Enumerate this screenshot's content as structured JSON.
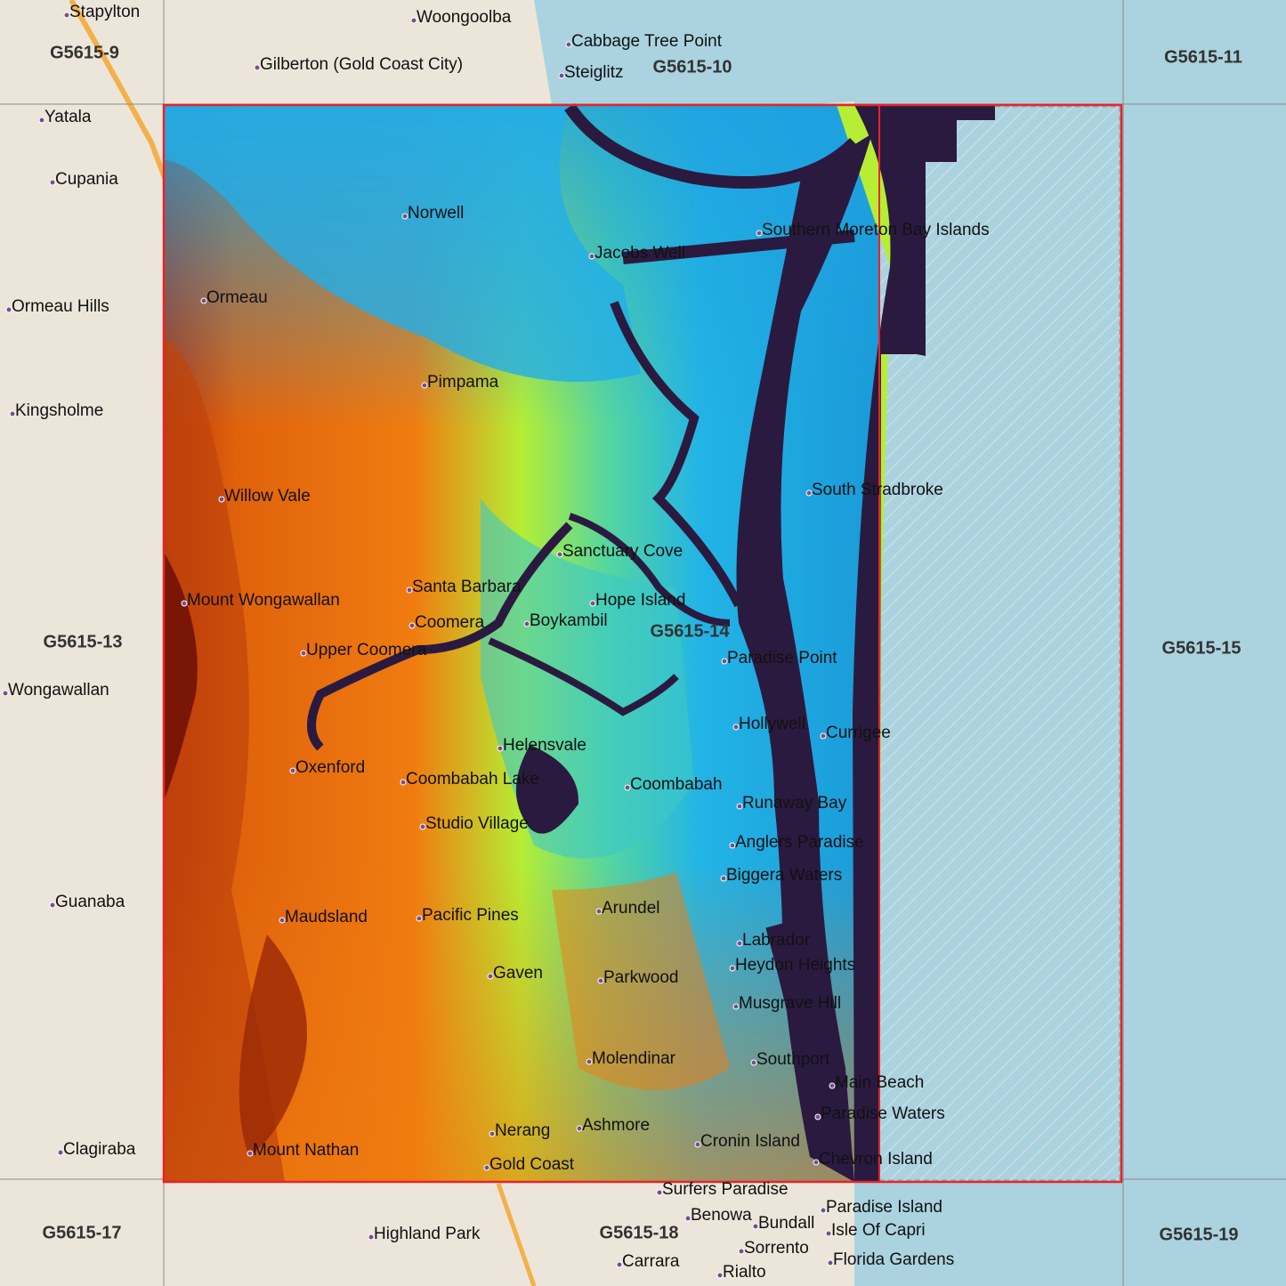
{
  "map": {
    "colors": {
      "ocean": "#aad3df",
      "land": "#ece6da",
      "extent_outline": "#e8232a",
      "water_mask": "#2b1a40",
      "dem_low": "#1fa2e0",
      "dem_mid": "#a6f23c",
      "dem_high": "#f07c10",
      "dem_peak": "#8a1a08"
    },
    "tiles": [
      "G5615-9",
      "G5615-10",
      "G5615-11",
      "G5615-13",
      "G5615-14",
      "G5615-15",
      "G5615-17",
      "G5615-18",
      "G5615-19"
    ],
    "places": [
      "Stapylton",
      "Woongoolba",
      "Cabbage Tree Point",
      "Gilberton (Gold Coast City)",
      "Steiglitz",
      "Yatala",
      "Cupania",
      "Norwell",
      "Southern Moreton Bay Islands",
      "Jacobs Well",
      "Ormeau",
      "Ormeau Hills",
      "Pimpama",
      "Kingsholme",
      "South Stradbroke",
      "Willow Vale",
      "Sanctuary Cove",
      "Santa Barbara",
      "Hope Island",
      "Mount Wongawallan",
      "Boykambil",
      "Coomera",
      "Upper Coomera",
      "Paradise Point",
      "Wongawallan",
      "Hollywell",
      "Currigee",
      "Helensvale",
      "Oxenford",
      "Coombabah Lake",
      "Coombabah",
      "Runaway Bay",
      "Studio Village",
      "Anglers Paradise",
      "Biggera Waters",
      "Guanaba",
      "Arundel",
      "Pacific Pines",
      "Maudsland",
      "Labrador",
      "Heydon Heights",
      "Gaven",
      "Parkwood",
      "Musgrave Hill",
      "Molendinar",
      "Southport",
      "Main Beach",
      "Paradise Waters",
      "Ashmore",
      "Nerang",
      "Cronin Island",
      "Clagiraba",
      "Mount Nathan",
      "Chevron Island",
      "Gold Coast",
      "Surfers Paradise",
      "Paradise Island",
      "Highland Park",
      "Benowa",
      "Bundall",
      "Isle Of Capri",
      "Sorrento",
      "Florida Gardens",
      "Carrara",
      "Rialto"
    ]
  }
}
